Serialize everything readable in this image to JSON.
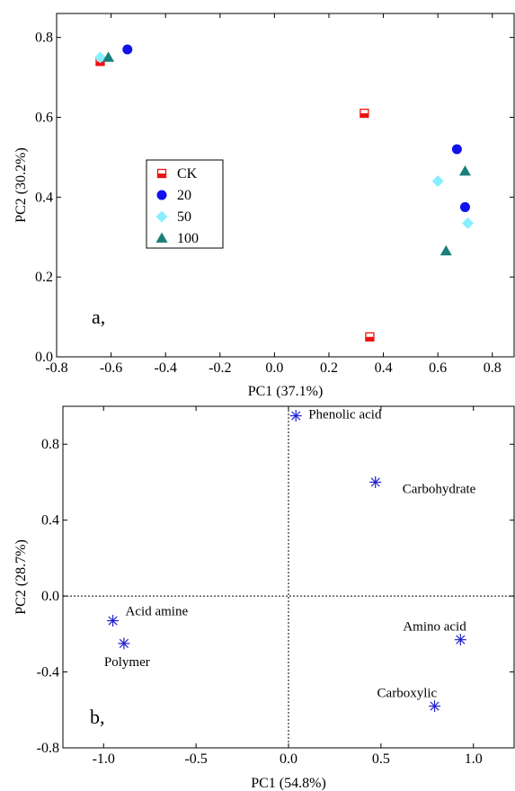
{
  "chart_data": [
    {
      "type": "scatter",
      "panel_label": "a,",
      "xlabel": "PC1 (37.1%)",
      "ylabel": "PC2 (30.2%)",
      "xlim": [
        -0.8,
        0.88
      ],
      "ylim": [
        0.0,
        0.86
      ],
      "xticks": [
        -0.8,
        -0.6,
        -0.4,
        -0.2,
        0.0,
        0.2,
        0.4,
        0.6,
        0.8
      ],
      "xtick_labels": [
        "-0.8",
        "-0.6",
        "-0.4",
        "-0.2",
        "0.0",
        "0.2",
        "0.4",
        "0.6",
        "0.8"
      ],
      "yticks": [
        0.0,
        0.2,
        0.4,
        0.6,
        0.8
      ],
      "ytick_labels": [
        "0.0",
        "0.2",
        "0.4",
        "0.6",
        "0.8"
      ],
      "legend_position": "middle-left",
      "series": [
        {
          "name": "CK",
          "marker": "half-square",
          "color": "#ee1111",
          "points": [
            [
              -0.64,
              0.74
            ],
            [
              0.33,
              0.61
            ],
            [
              0.35,
              0.05
            ]
          ]
        },
        {
          "name": "20",
          "marker": "circle",
          "color": "#1111ee",
          "points": [
            [
              -0.54,
              0.77
            ],
            [
              0.67,
              0.52
            ],
            [
              0.7,
              0.375
            ]
          ]
        },
        {
          "name": "50",
          "marker": "diamond",
          "color": "#88eeff",
          "points": [
            [
              -0.64,
              0.75
            ],
            [
              0.6,
              0.44
            ],
            [
              0.71,
              0.335
            ]
          ]
        },
        {
          "name": "100",
          "marker": "triangle",
          "color": "#1a7f7a",
          "points": [
            [
              -0.61,
              0.75
            ],
            [
              0.7,
              0.465
            ],
            [
              0.63,
              0.265
            ]
          ]
        }
      ]
    },
    {
      "type": "scatter",
      "panel_label": "b,",
      "xlabel": "PC1 (54.8%)",
      "ylabel": "PC2 (28.7%)",
      "xlim": [
        -1.22,
        1.22
      ],
      "ylim": [
        -0.8,
        1.0
      ],
      "xticks": [
        -1.0,
        -0.5,
        0.0,
        0.5,
        1.0
      ],
      "xtick_labels": [
        "-1.0",
        "-0.5",
        "0.0",
        "0.5",
        "1.0"
      ],
      "yticks": [
        -0.8,
        -0.4,
        0.0,
        0.4,
        0.8
      ],
      "ytick_labels": [
        "-0.8",
        "-0.4",
        "0.0",
        "0.4",
        "0.8"
      ],
      "zero_lines": true,
      "marker_color": "#2222cc",
      "points": [
        {
          "label": "Phenolic acid",
          "x": 0.04,
          "y": 0.95,
          "label_side": "right"
        },
        {
          "label": "Carbohydrate",
          "x": 0.47,
          "y": 0.6,
          "label_side": "right-below"
        },
        {
          "label": "Acid amine",
          "x": -0.95,
          "y": -0.13,
          "label_side": "right-above"
        },
        {
          "label": "Polymer",
          "x": -0.89,
          "y": -0.25,
          "label_side": "below"
        },
        {
          "label": "Amino acid",
          "x": 0.93,
          "y": -0.23,
          "label_side": "above-left"
        },
        {
          "label": "Carboxylic",
          "x": 0.79,
          "y": -0.58,
          "label_side": "above-left"
        }
      ]
    }
  ]
}
